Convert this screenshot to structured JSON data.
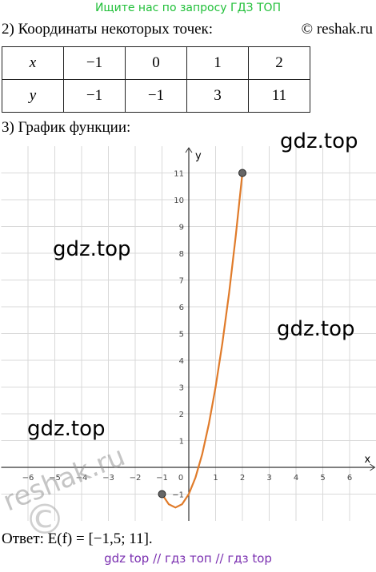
{
  "header": {
    "banner": "Ищите нас по запросу ГДЗ ТОП",
    "task": "2) Координаты некоторых точек:",
    "copyright": "© reshak.ru"
  },
  "table": {
    "rows": [
      [
        "x",
        "−1",
        "0",
        "1",
        "2"
      ],
      [
        "y",
        "−1",
        "−1",
        "3",
        "11"
      ]
    ]
  },
  "section": "3) График функции:",
  "graph": {
    "x_label": "x",
    "y_label": "y",
    "xlim": [
      -7,
      7
    ],
    "ylim": [
      -2,
      12
    ],
    "xticks": [
      {
        "value": -6,
        "label": "−6"
      },
      {
        "value": -5,
        "label": "−5"
      },
      {
        "value": -4,
        "label": "−4"
      },
      {
        "value": -3,
        "label": "−3"
      },
      {
        "value": -2,
        "label": "−2"
      },
      {
        "value": -1,
        "label": "−1"
      },
      0,
      1,
      2,
      3,
      4,
      5,
      6
    ],
    "yticks": [
      {
        "value": -1,
        "label": "−1"
      },
      1,
      2,
      3,
      4,
      5,
      6,
      7,
      8,
      9,
      10,
      11
    ],
    "curve": {
      "color": "#e07b2a",
      "x": [
        -1,
        -0.75,
        -0.5,
        -0.25,
        0,
        0.25,
        0.5,
        0.75,
        1,
        1.25,
        1.5,
        1.75,
        2
      ],
      "y": [
        -1,
        -1.375,
        -1.5,
        -1.375,
        -1,
        -0.375,
        0.5,
        1.625,
        3,
        4.625,
        6.5,
        8.625,
        11
      ]
    },
    "points": {
      "x": [
        -1,
        2
      ],
      "y": [
        -1,
        11
      ]
    }
  },
  "answer": "Ответ:  E(f) = [−1,5;  11].",
  "footer": "gdz top  //  гдз топ  //  гдз top",
  "watermarks": [
    "gdz.top",
    "gdz.top",
    "gdz.top",
    "gdz.top",
    "reshak.ru",
    "©"
  ]
}
